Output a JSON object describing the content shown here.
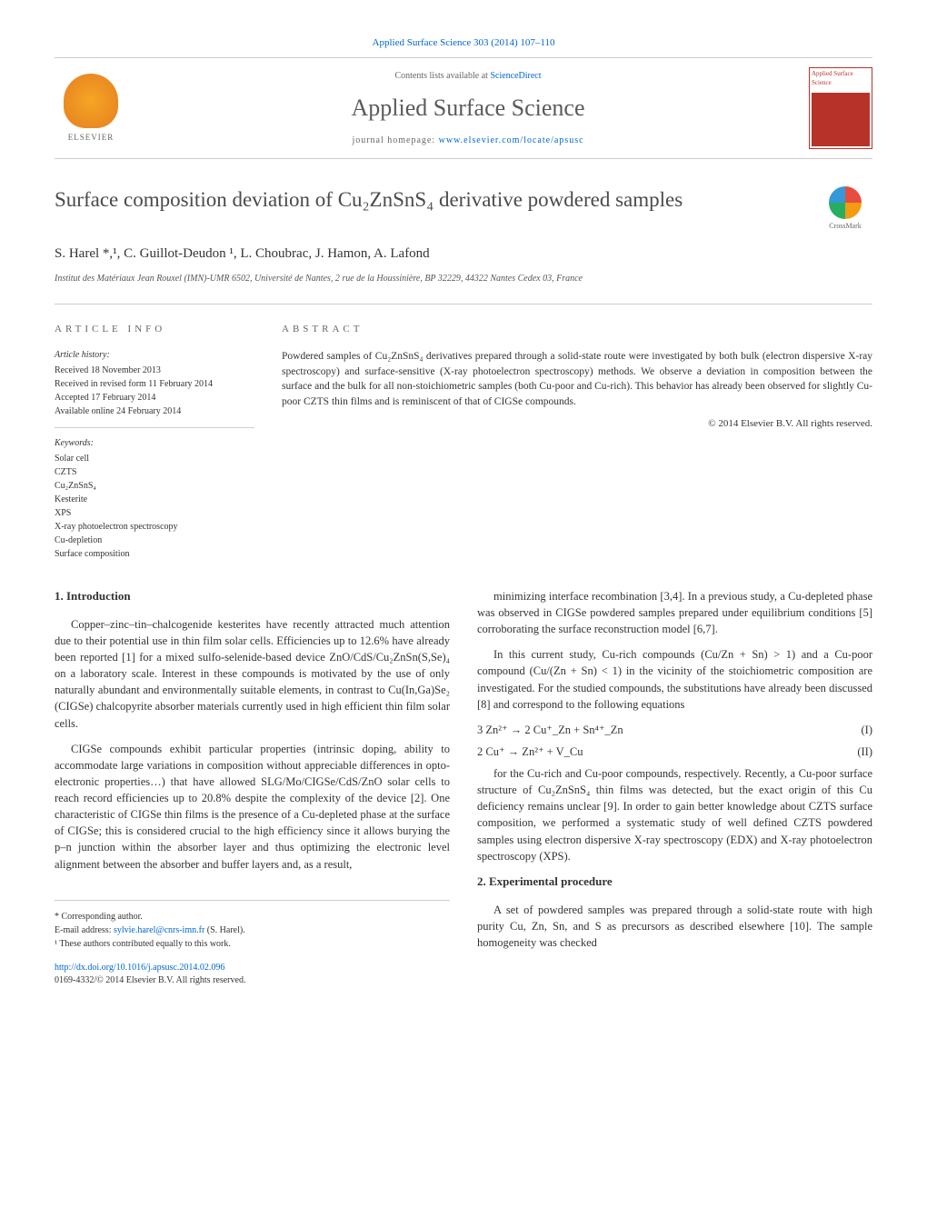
{
  "header": {
    "citation": "Applied Surface Science 303 (2014) 107–110",
    "contents_prefix": "Contents lists available at ",
    "contents_link": "ScienceDirect",
    "journal_title": "Applied Surface Science",
    "homepage_prefix": "journal homepage: ",
    "homepage_link": "www.elsevier.com/locate/apsusc",
    "publisher": "ELSEVIER",
    "cover_text": "Applied Surface Science"
  },
  "article": {
    "title_html": "Surface composition deviation of Cu₂ZnSnS₄ derivative powdered samples",
    "crossmark_label": "CrossMark",
    "authors": "S. Harel *,¹, C. Guillot-Deudon ¹, L. Choubrac, J. Hamon, A. Lafond",
    "affiliation": "Institut des Matériaux Jean Rouxel (IMN)-UMR 6502, Université de Nantes, 2 rue de la Houssinière, BP 32229, 44322 Nantes Cedex 03, France"
  },
  "info": {
    "heading": "ARTICLE INFO",
    "history_heading": "Article history:",
    "received": "Received 18 November 2013",
    "revised": "Received in revised form 11 February 2014",
    "accepted": "Accepted 17 February 2014",
    "online": "Available online 24 February 2014",
    "keywords_heading": "Keywords:",
    "keywords": [
      "Solar cell",
      "CZTS",
      "Cu₂ZnSnS₄",
      "Kesterite",
      "XPS",
      "X-ray photoelectron spectroscopy",
      "Cu-depletion",
      "Surface composition"
    ]
  },
  "abstract": {
    "heading": "ABSTRACT",
    "text": "Powdered samples of Cu₂ZnSnS₄ derivatives prepared through a solid-state route were investigated by both bulk (electron dispersive X-ray spectroscopy) and surface-sensitive (X-ray photoelectron spectroscopy) methods. We observe a deviation in composition between the surface and the bulk for all non-stoichiometric samples (both Cu-poor and Cu-rich). This behavior has already been observed for slightly Cu-poor CZTS thin films and is reminiscent of that of CIGSe compounds.",
    "copyright": "© 2014 Elsevier B.V. All rights reserved."
  },
  "body": {
    "section1_heading": "1. Introduction",
    "para1": "Copper–zinc–tin–chalcogenide kesterites have recently attracted much attention due to their potential use in thin film solar cells. Efficiencies up to 12.6% have already been reported [1] for a mixed sulfo-selenide-based device ZnO/CdS/Cu₂ZnSn(S,Se)₄ on a laboratory scale. Interest in these compounds is motivated by the use of only naturally abundant and environmentally suitable elements, in contrast to Cu(In,Ga)Se₂ (CIGSe) chalcopyrite absorber materials currently used in high efficient thin film solar cells.",
    "para2": "CIGSe compounds exhibit particular properties (intrinsic doping, ability to accommodate large variations in composition without appreciable differences in opto-electronic properties…) that have allowed SLG/Mo/CIGSe/CdS/ZnO solar cells to reach record efficiencies up to 20.8% despite the complexity of the device [2]. One characteristic of CIGSe thin films is the presence of a Cu-depleted phase at the surface of CIGSe; this is considered crucial to the high efficiency since it allows burying the p–n junction within the absorber layer and thus optimizing the electronic level alignment between the absorber and buffer layers and, as a result,",
    "para3": "minimizing interface recombination [3,4]. In a previous study, a Cu-depleted phase was observed in CIGSe powdered samples prepared under equilibrium conditions [5] corroborating the surface reconstruction model [6,7].",
    "para4": "In this current study, Cu-rich compounds (Cu/Zn + Sn) > 1) and a Cu-poor compound (Cu/(Zn + Sn) < 1) in the vicinity of the stoichiometric composition are investigated. For the studied compounds, the substitutions have already been discussed [8] and correspond to the following equations",
    "eq1": "3 Zn²⁺ → 2 Cu⁺_Zn + Sn⁴⁺_Zn",
    "eq1_label": "(I)",
    "eq2": "2 Cu⁺ → Zn²⁺ + V_Cu",
    "eq2_label": "(II)",
    "para5": "for the Cu-rich and Cu-poor compounds, respectively. Recently, a Cu-poor surface structure of Cu₂ZnSnS₄ thin films was detected, but the exact origin of this Cu deficiency remains unclear [9]. In order to gain better knowledge about CZTS surface composition, we performed a systematic study of well defined CZTS powdered samples using electron dispersive X-ray spectroscopy (EDX) and X-ray photoelectron spectroscopy (XPS).",
    "section2_heading": "2. Experimental procedure",
    "para6": "A set of powdered samples was prepared through a solid-state route with high purity Cu, Zn, Sn, and S as precursors as described elsewhere [10]. The sample homogeneity was checked"
  },
  "refs": {
    "r1": "[1]",
    "r2": "[2]",
    "r34": "[3,4]",
    "r5": "[5]",
    "r67": "[6,7]",
    "r8": "[8]",
    "r9": "[9]",
    "r10": "[10]"
  },
  "footer": {
    "corresponding": "* Corresponding author.",
    "email_prefix": "E-mail address: ",
    "email": "sylvie.harel@cnrs-imn.fr",
    "email_suffix": " (S. Harel).",
    "contrib": "¹ These authors contributed equally to this work.",
    "doi": "http://dx.doi.org/10.1016/j.apsusc.2014.02.096",
    "issn": "0169-4332/© 2014 Elsevier B.V. All rights reserved."
  },
  "colors": {
    "link": "#0066cc",
    "text": "#333333",
    "heading_gray": "#666666",
    "brand_red": "#b7332a",
    "elsevier_orange": "#e67e22"
  }
}
